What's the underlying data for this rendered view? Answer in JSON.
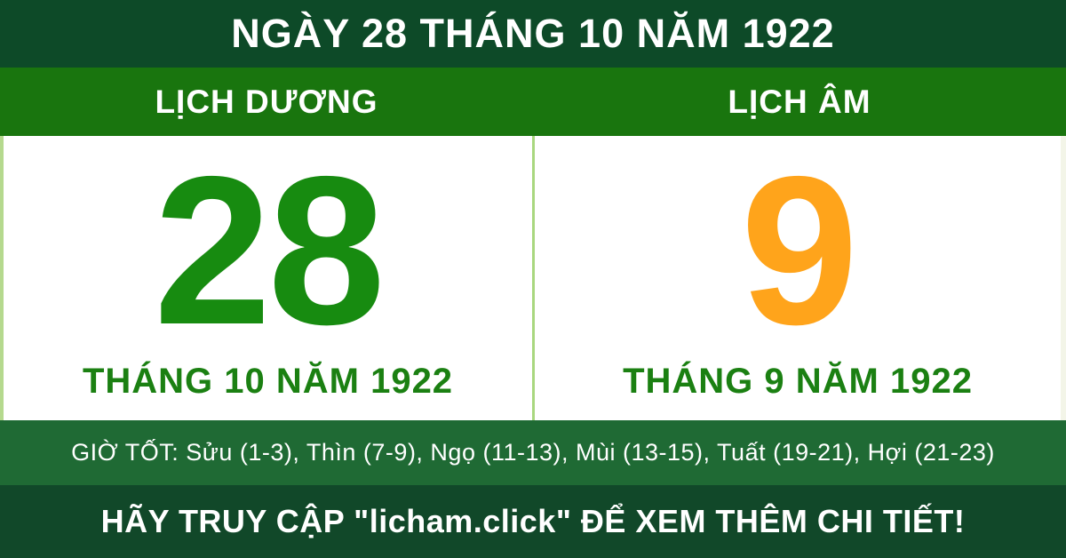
{
  "banner": {
    "title": "NGÀY 28 THÁNG 10 NĂM 1922"
  },
  "solar": {
    "label": "LỊCH DƯƠNG",
    "day": "28",
    "month_year": "THÁNG 10 NĂM 1922"
  },
  "lunar": {
    "label": "LỊCH ÂM",
    "day": "9",
    "month_year": "THÁNG 9 NĂM 1922"
  },
  "good_hours": {
    "label": "GIỜ TỐT:",
    "entries": [
      "Sửu (1-3)",
      "Thìn (7-9)",
      "Ngọ (11-13)",
      "Mùi (13-15)",
      "Tuất (19-21)",
      "Hợi (21-23)"
    ],
    "text": "GIỜ TỐT: Sửu (1-3), Thìn (7-9), Ngọ (11-13), Mùi (13-15), Tuất (19-21), Hợi (21-23)"
  },
  "footer": {
    "text": "HÃY TRUY CẬP \"licham.click\" ĐỂ XEM THÊM CHI TIẾT!"
  },
  "colors": {
    "header_bg": "#0d4a28",
    "calbar_bg": "#19750e",
    "solar_day": "#178b10",
    "lunar_day": "#ffa41b",
    "month_text": "#1b8012",
    "good_hours_bg": "#1f6a34",
    "footer_bg": "#114829",
    "divider": "#a9d77f",
    "text_light": "#ffffff",
    "panel_bg": "#ffffff"
  }
}
